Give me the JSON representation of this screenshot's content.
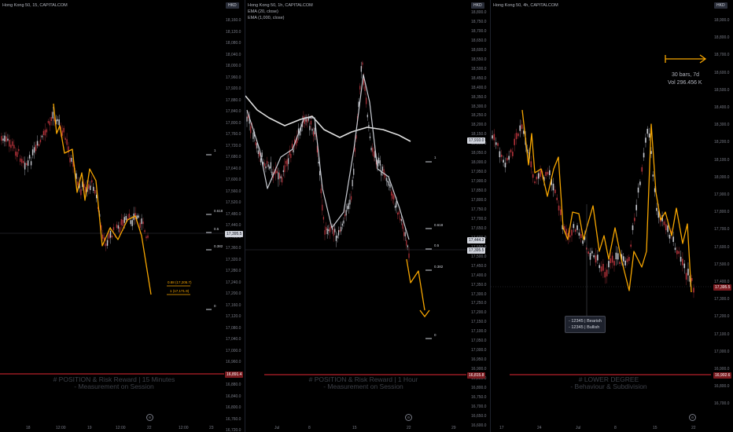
{
  "panels": [
    {
      "title": "Hong Kong 50, 15, CAPITALCOM",
      "currency": "HKD",
      "y_labels": [
        "18,160.0",
        "18,120.0",
        "18,080.0",
        "18,040.0",
        "18,000.0",
        "17,960.0",
        "17,920.0",
        "17,880.0",
        "17,840.0",
        "17,800.0",
        "17,760.0",
        "17,720.0",
        "17,680.0",
        "17,640.0",
        "17,600.0",
        "17,560.0",
        "17,520.0",
        "17,480.0",
        "17,440.0",
        "17,400.0",
        "17,360.0",
        "17,320.0",
        "17,280.0",
        "17,240.0",
        "17,200.0",
        "17,160.0",
        "17,120.0",
        "17,080.0",
        "17,040.0",
        "17,000.0",
        "16,960.0",
        "16,920.0",
        "16,880.0",
        "16,840.0",
        "16,800.0",
        "16,760.0",
        "16,720.0"
      ],
      "price_tag": "17,395.5",
      "red_tag": "16,891.4",
      "x_labels": [
        "18",
        "12:00",
        "19",
        "12:00",
        "22",
        "12:00",
        "23"
      ],
      "watermark_line1": "# POSITION & Risk Reward | 15 Minutes",
      "watermark_line2": "- Measurement on Session",
      "fib": [
        "1",
        "0.618",
        "0.5",
        "0.382",
        "0"
      ],
      "rr_labels": [
        "0.88 (17,205.7)",
        "1 (17,171.9)"
      ],
      "gear": "⚙"
    },
    {
      "title": "Hong Kong 50, 1h, CAPITALCOM",
      "ema1": "EMA (20, close)",
      "ema2": "EMA (1,000, close)",
      "currency": "HKD",
      "y_labels": [
        "18,800.0",
        "18,750.0",
        "18,700.0",
        "18,650.0",
        "18,600.0",
        "18,550.0",
        "18,500.0",
        "18,450.0",
        "18,400.0",
        "18,350.0",
        "18,300.0",
        "18,250.0",
        "18,200.0",
        "18,150.0",
        "18,100.0",
        "18,050.0",
        "18,000.0",
        "17,950.0",
        "17,900.0",
        "17,850.0",
        "17,800.0",
        "17,750.0",
        "17,700.0",
        "17,650.0",
        "17,600.0",
        "17,550.0",
        "17,500.0",
        "17,450.0",
        "17,400.0",
        "17,350.0",
        "17,300.0",
        "17,250.0",
        "17,200.0",
        "17,150.0",
        "17,100.0",
        "17,050.0",
        "17,000.0",
        "16,950.0",
        "16,900.0",
        "16,850.0",
        "16,800.0",
        "16,750.0",
        "16,700.0",
        "16,650.0",
        "16,600.0"
      ],
      "ema_tag": "17,910.0",
      "price_tag1": "17,444.3",
      "price_tag2": "17,395.5",
      "red_tag": "16,815.8",
      "x_labels": [
        "Jul",
        "8",
        "15",
        "22",
        "29"
      ],
      "watermark_line1": "# POSITION & Risk Reward | 1 Hour",
      "watermark_line2": "- Measurement on Session",
      "fib": [
        "1",
        "0.618",
        "0.5",
        "0.382",
        "0"
      ],
      "gear": "⚙"
    },
    {
      "title": "Hong Kong 50, 4h, CAPITALCOM",
      "currency": "HKD",
      "y_labels": [
        "18,900.0",
        "18,800.0",
        "18,700.0",
        "18,600.0",
        "18,500.0",
        "18,400.0",
        "18,300.0",
        "18,200.0",
        "18,100.0",
        "18,000.0",
        "17,900.0",
        "17,800.0",
        "17,700.0",
        "17,600.0",
        "17,500.0",
        "17,400.0",
        "17,300.0",
        "17,200.0",
        "17,100.0",
        "17,000.0",
        "16,900.0",
        "16,800.0",
        "16,700.0"
      ],
      "price_tag": "17,395.5",
      "red_tag": "16,902.6",
      "x_labels": [
        "17",
        "24",
        "Jul",
        "8",
        "15",
        "22"
      ],
      "measure_line1": "30 bars, 7d",
      "measure_line2": "Vol 296.456 K",
      "tooltip_line1": "- 12345 | Bearish",
      "tooltip_line2": "- 12345 | Bullish",
      "watermark_line1": "# LOWER DEGREE",
      "watermark_line2": "- Behaviour & Subdivision",
      "gear": "⚙"
    }
  ]
}
